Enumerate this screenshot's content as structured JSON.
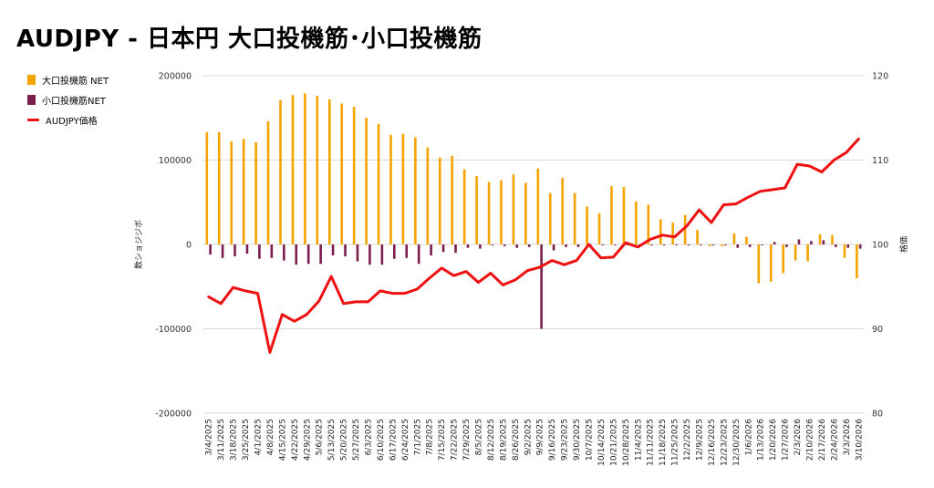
{
  "chart_data": {
    "type": "bar+line",
    "title": "AUDJPY - 日本円 大口投機筋･小口投機筋",
    "ylabel_left": "数ショジジボ",
    "ylabel_right": "格価",
    "ylim_left": [
      -200000,
      200000
    ],
    "ylim_right": [
      80,
      120
    ],
    "yticks_left": [
      "200000",
      "100000",
      "0",
      "-100000",
      "-200000"
    ],
    "yticks_right": [
      "120",
      "110",
      "100",
      "90",
      "80"
    ],
    "legend_position": "left",
    "grid": true,
    "categories": [
      "3/4/2025",
      "3/11/2025",
      "3/18/2025",
      "3/25/2025",
      "4/1/2025",
      "4/8/2025",
      "4/15/2025",
      "4/22/2025",
      "4/29/2025",
      "5/6/2025",
      "5/13/2025",
      "5/20/2025",
      "5/27/2025",
      "6/3/2025",
      "6/10/2025",
      "6/17/2025",
      "6/24/2025",
      "7/1/2025",
      "7/8/2025",
      "7/15/2025",
      "7/22/2025",
      "7/29/2025",
      "8/5/2025",
      "8/12/2025",
      "8/19/2025",
      "8/26/2025",
      "9/2/2025",
      "9/9/2025",
      "9/16/2025",
      "9/23/2025",
      "9/30/2025",
      "10/7/2025",
      "10/14/2025",
      "10/21/2025",
      "10/28/2025",
      "11/4/2025",
      "11/11/2025",
      "11/18/2025",
      "11/25/2025",
      "12/2/2025",
      "12/9/2025",
      "12/16/2025",
      "12/23/2025",
      "12/30/2025",
      "1/6/2026",
      "1/13/2026",
      "1/20/2026",
      "1/27/2026",
      "2/3/2026",
      "2/10/2026",
      "2/17/2026",
      "2/24/2026",
      "3/3/2026",
      "3/10/2026"
    ],
    "series": [
      {
        "name": "大口投機筋 NET",
        "type": "bar",
        "axis": "left",
        "color": "#f5a300",
        "values": [
          133000,
          133000,
          122000,
          125000,
          121000,
          146000,
          171000,
          177000,
          179000,
          176000,
          172000,
          167000,
          163000,
          150000,
          143000,
          130000,
          131000,
          127000,
          115000,
          103000,
          105000,
          89000,
          81000,
          74000,
          76000,
          83000,
          73000,
          90000,
          61000,
          79000,
          61000,
          45000,
          37000,
          69000,
          68000,
          51000,
          47000,
          30000,
          26000,
          35000,
          17000,
          -2000,
          -2000,
          13000,
          9000,
          -46000,
          -44000,
          -34000,
          -19000,
          -20000,
          12000,
          11000,
          -16000,
          -40000
        ]
      },
      {
        "name": "小口投機筋NET",
        "type": "bar",
        "axis": "left",
        "color": "#7b1e4e",
        "values": [
          -12000,
          -16000,
          -14000,
          -11000,
          -17000,
          -16000,
          -19000,
          -24000,
          -23000,
          -23000,
          -13000,
          -14000,
          -20000,
          -24000,
          -24000,
          -17000,
          -16000,
          -23000,
          -13000,
          -9000,
          -10000,
          -4000,
          -5000,
          -1000,
          -2000,
          -4000,
          -3000,
          -100000,
          -7000,
          -3000,
          -3000,
          -1000,
          -1000,
          -1000,
          -1000,
          -1000,
          -1000,
          -1000,
          -1000,
          -1000,
          -1000,
          -1000,
          -1000,
          -4000,
          -3000,
          -1000,
          3000,
          -3000,
          6000,
          4000,
          5000,
          -3000,
          -4000,
          -5000
        ]
      },
      {
        "name": "AUDJPY価格",
        "type": "line",
        "axis": "right",
        "color": "#ee1111",
        "values": [
          93.8,
          93.0,
          94.9,
          94.5,
          94.2,
          87.2,
          91.7,
          90.9,
          91.7,
          93.3,
          96.2,
          93.0,
          93.2,
          93.2,
          94.5,
          94.2,
          94.2,
          94.7,
          96.0,
          97.2,
          96.3,
          96.8,
          95.5,
          96.6,
          95.2,
          95.8,
          96.9,
          97.3,
          98.1,
          97.6,
          98.1,
          100.0,
          98.4,
          98.5,
          100.2,
          99.7,
          100.6,
          101.1,
          100.9,
          102.2,
          104.1,
          102.6,
          104.7,
          104.8,
          105.6,
          106.3,
          106.5,
          106.7,
          109.5,
          109.3,
          108.6,
          110.0,
          110.9,
          112.5
        ]
      }
    ]
  }
}
